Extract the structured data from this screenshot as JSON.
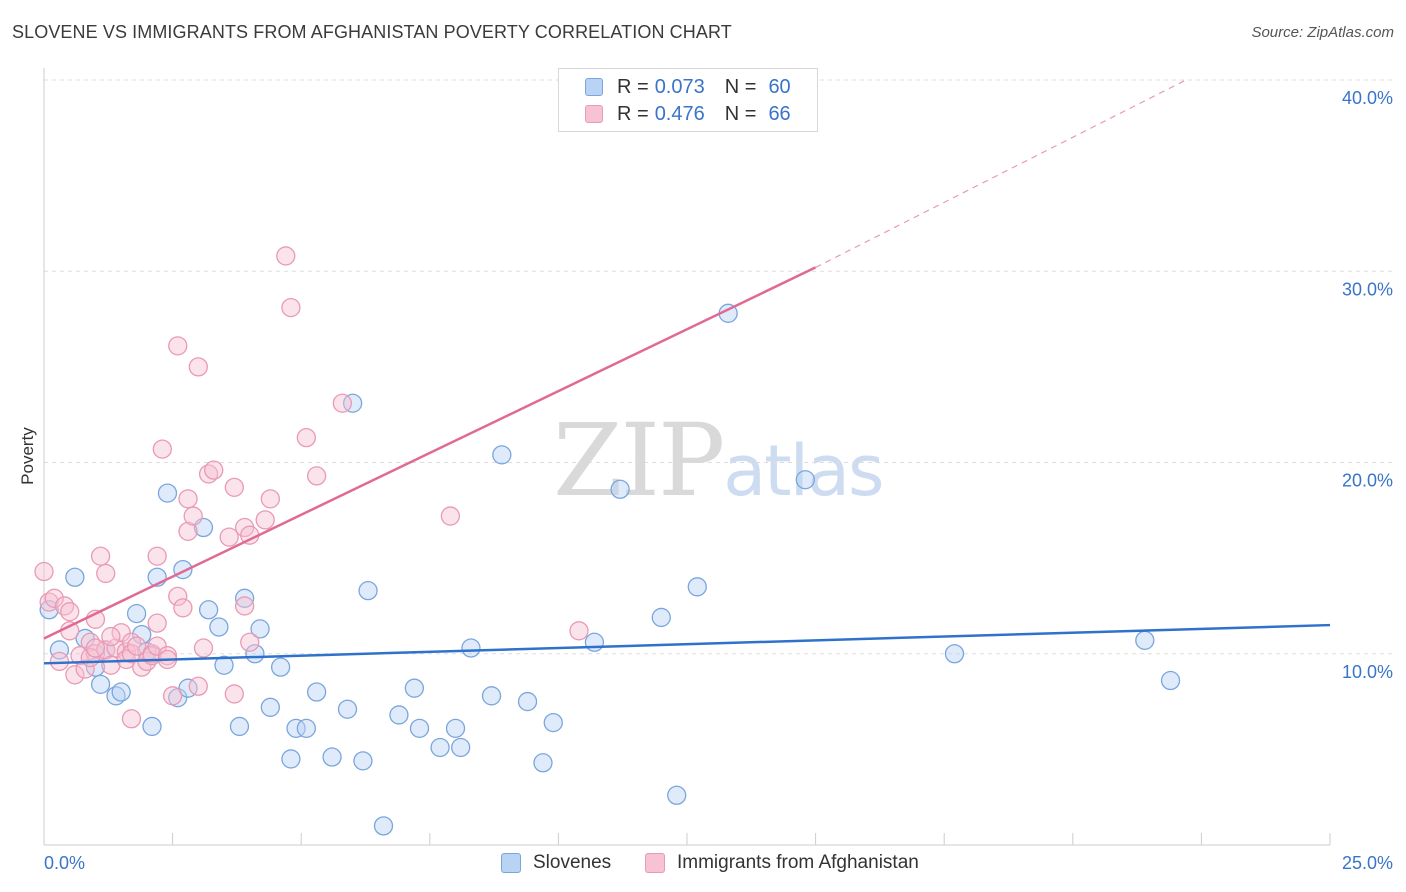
{
  "title": "SLOVENE VS IMMIGRANTS FROM AFGHANISTAN POVERTY CORRELATION CHART",
  "source": "Source: ZipAtlas.com",
  "watermark": {
    "zip": "ZIP",
    "atlas": "atlas"
  },
  "legend": {
    "r_label": "R =",
    "n_label": "N =",
    "rows": [
      {
        "r": "0.073",
        "n": "60"
      },
      {
        "r": "0.476",
        "n": "66"
      }
    ]
  },
  "bottom_legend": [
    "Slovenes",
    "Immigrants from Afghanistan"
  ],
  "colors": {
    "blue_fill": "#b8d3f3",
    "blue_stroke": "#7aa6dd",
    "blue_line": "#2f72cc",
    "pink_fill": "#f7c2d3",
    "pink_stroke": "#e99ab4",
    "pink_line": "#e06a95",
    "tick_text": "#3a74c9",
    "grid": "#dddddd"
  },
  "chart_data": {
    "type": "scatter",
    "title": "SLOVENE VS IMMIGRANTS FROM AFGHANISTAN POVERTY CORRELATION CHART",
    "ylabel": "Poverty",
    "xlim": [
      0,
      25
    ],
    "ylim": [
      0,
      40
    ],
    "x_tick_labels": [
      "0.0%",
      "25.0%"
    ],
    "y_ticks": [
      10,
      20,
      30,
      40
    ],
    "y_tick_labels": [
      "10.0%",
      "20.0%",
      "30.0%",
      "40.0%"
    ],
    "grid": true,
    "legend_position": "top-center",
    "series": [
      {
        "name": "Slovenes",
        "color": "#7aa6dd",
        "r": 0.073,
        "n": 60,
        "trend": {
          "x": [
            0,
            25
          ],
          "y": [
            9.5,
            11.5
          ],
          "dashed_extension": false
        },
        "points": [
          [
            0.1,
            12.3
          ],
          [
            0.3,
            10.2
          ],
          [
            0.6,
            14.0
          ],
          [
            0.8,
            10.8
          ],
          [
            1.0,
            9.3
          ],
          [
            1.1,
            8.4
          ],
          [
            1.2,
            10.2
          ],
          [
            1.4,
            7.8
          ],
          [
            1.5,
            8.0
          ],
          [
            1.8,
            12.1
          ],
          [
            1.9,
            11.0
          ],
          [
            2.0,
            10.1
          ],
          [
            2.1,
            6.2
          ],
          [
            2.2,
            14.0
          ],
          [
            2.4,
            18.4
          ],
          [
            2.6,
            7.7
          ],
          [
            2.7,
            14.4
          ],
          [
            2.8,
            8.2
          ],
          [
            3.1,
            16.6
          ],
          [
            3.2,
            12.3
          ],
          [
            3.4,
            11.4
          ],
          [
            3.5,
            9.4
          ],
          [
            3.8,
            6.2
          ],
          [
            3.9,
            12.9
          ],
          [
            4.1,
            10.0
          ],
          [
            4.2,
            11.3
          ],
          [
            4.4,
            7.2
          ],
          [
            4.6,
            9.3
          ],
          [
            4.8,
            4.5
          ],
          [
            4.9,
            6.1
          ],
          [
            5.1,
            6.1
          ],
          [
            5.3,
            8.0
          ],
          [
            5.6,
            4.6
          ],
          [
            5.9,
            7.1
          ],
          [
            6.0,
            23.1
          ],
          [
            6.2,
            4.4
          ],
          [
            6.3,
            13.3
          ],
          [
            6.6,
            1.0
          ],
          [
            6.9,
            6.8
          ],
          [
            7.2,
            8.2
          ],
          [
            7.3,
            6.1
          ],
          [
            7.7,
            5.1
          ],
          [
            8.0,
            6.1
          ],
          [
            8.1,
            5.1
          ],
          [
            8.3,
            10.3
          ],
          [
            8.7,
            7.8
          ],
          [
            8.9,
            20.4
          ],
          [
            9.4,
            7.5
          ],
          [
            9.7,
            4.3
          ],
          [
            9.9,
            6.4
          ],
          [
            10.7,
            10.6
          ],
          [
            11.2,
            18.6
          ],
          [
            12.0,
            11.9
          ],
          [
            12.3,
            2.6
          ],
          [
            12.7,
            13.5
          ],
          [
            13.3,
            27.8
          ],
          [
            14.8,
            19.1
          ],
          [
            17.7,
            10.0
          ],
          [
            21.4,
            10.7
          ],
          [
            21.9,
            8.6
          ]
        ]
      },
      {
        "name": "Immigrants from Afghanistan",
        "color": "#e99ab4",
        "r": 0.476,
        "n": 66,
        "trend": {
          "x": [
            0,
            15
          ],
          "y": [
            10.8,
            30.2
          ],
          "dashed_extension": true,
          "dashed_to": [
            22.2,
            40.0
          ]
        },
        "points": [
          [
            0.0,
            14.3
          ],
          [
            0.1,
            12.7
          ],
          [
            0.2,
            12.9
          ],
          [
            0.3,
            9.6
          ],
          [
            0.4,
            12.5
          ],
          [
            0.5,
            11.2
          ],
          [
            0.5,
            12.2
          ],
          [
            0.6,
            8.9
          ],
          [
            0.7,
            9.9
          ],
          [
            0.8,
            9.2
          ],
          [
            0.9,
            10.6
          ],
          [
            1.0,
            11.8
          ],
          [
            1.0,
            10.0
          ],
          [
            1.1,
            15.1
          ],
          [
            1.2,
            10.2
          ],
          [
            1.3,
            9.4
          ],
          [
            1.2,
            14.2
          ],
          [
            1.4,
            10.3
          ],
          [
            1.5,
            11.1
          ],
          [
            1.6,
            10.1
          ],
          [
            1.6,
            9.7
          ],
          [
            1.7,
            10.6
          ],
          [
            1.7,
            10.0
          ],
          [
            1.8,
            10.4
          ],
          [
            1.9,
            9.3
          ],
          [
            2.0,
            9.6
          ],
          [
            2.1,
            10.0
          ],
          [
            2.1,
            9.9
          ],
          [
            2.2,
            10.4
          ],
          [
            1.7,
            6.6
          ],
          [
            2.2,
            15.1
          ],
          [
            2.2,
            11.6
          ],
          [
            2.3,
            20.7
          ],
          [
            2.4,
            9.9
          ],
          [
            2.5,
            7.8
          ],
          [
            2.6,
            13.0
          ],
          [
            2.6,
            26.1
          ],
          [
            2.7,
            12.4
          ],
          [
            2.8,
            16.4
          ],
          [
            2.8,
            18.1
          ],
          [
            2.9,
            17.2
          ],
          [
            3.0,
            8.3
          ],
          [
            3.0,
            25.0
          ],
          [
            3.2,
            19.4
          ],
          [
            3.3,
            19.6
          ],
          [
            3.6,
            16.1
          ],
          [
            3.7,
            18.7
          ],
          [
            3.7,
            7.9
          ],
          [
            3.9,
            16.6
          ],
          [
            3.9,
            12.5
          ],
          [
            4.0,
            16.2
          ],
          [
            4.0,
            10.6
          ],
          [
            4.3,
            17.0
          ],
          [
            4.4,
            18.1
          ],
          [
            4.7,
            30.8
          ],
          [
            4.8,
            28.1
          ],
          [
            5.1,
            21.3
          ],
          [
            5.3,
            19.3
          ],
          [
            5.8,
            23.1
          ],
          [
            7.9,
            17.2
          ],
          [
            10.4,
            11.2
          ],
          [
            0.9,
            9.8
          ],
          [
            1.3,
            10.9
          ],
          [
            3.1,
            10.3
          ],
          [
            1.0,
            10.3
          ],
          [
            2.4,
            9.7
          ]
        ]
      }
    ]
  }
}
